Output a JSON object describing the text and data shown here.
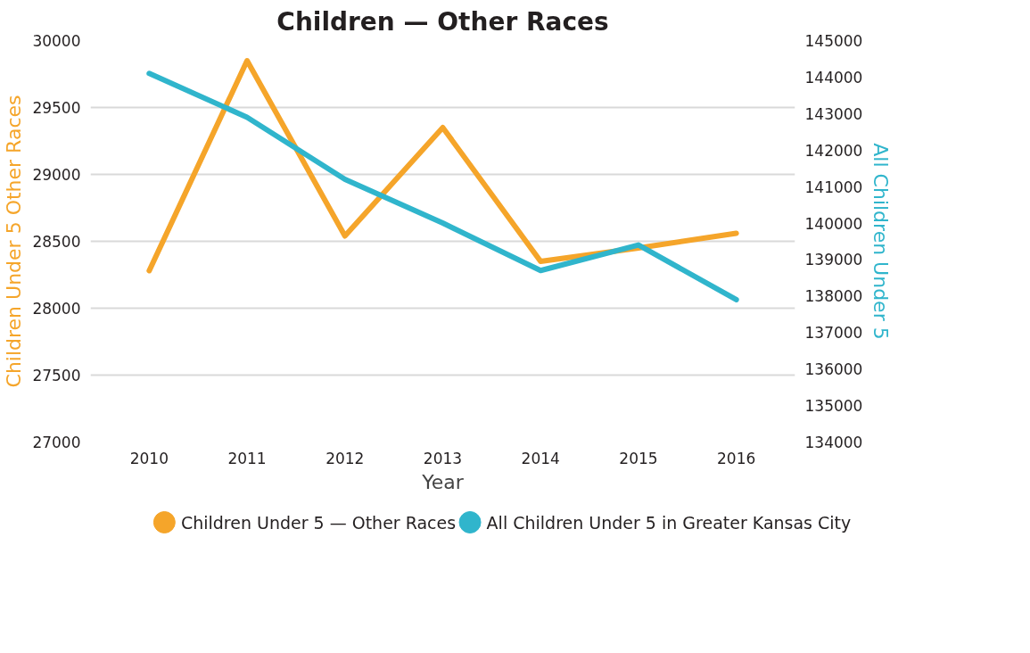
{
  "chart_data": {
    "type": "line",
    "title": "Children — Other Races",
    "xlabel": "Year",
    "ylabel": "Children Under 5 Other Races",
    "y2label": "All Children Under 5",
    "categories": [
      "2010",
      "2011",
      "2012",
      "2013",
      "2014",
      "2015",
      "2016"
    ],
    "series": [
      {
        "name": "Children Under 5 — Other Races",
        "color": "#f5a52a",
        "values": [
          28280,
          29850,
          28540,
          29350,
          28350,
          28450,
          28560
        ]
      },
      {
        "name": "All Children Under 5 in Greater Kansas City",
        "color": "#30b5cc",
        "axis": "y2",
        "values": [
          144100,
          142900,
          141200,
          140000,
          138700,
          139400,
          137900
        ]
      }
    ],
    "ylim": [
      27000,
      30000
    ],
    "yticks": [
      27000,
      27500,
      28000,
      28500,
      29000,
      29500,
      30000
    ],
    "y2lim": [
      134000,
      145000
    ],
    "y2ticks": [
      134000,
      135000,
      136000,
      137000,
      138000,
      139000,
      140000,
      141000,
      142000,
      143000,
      144000,
      145000
    ],
    "grid": "y",
    "legend": "bottom",
    "line_style": "solid"
  }
}
